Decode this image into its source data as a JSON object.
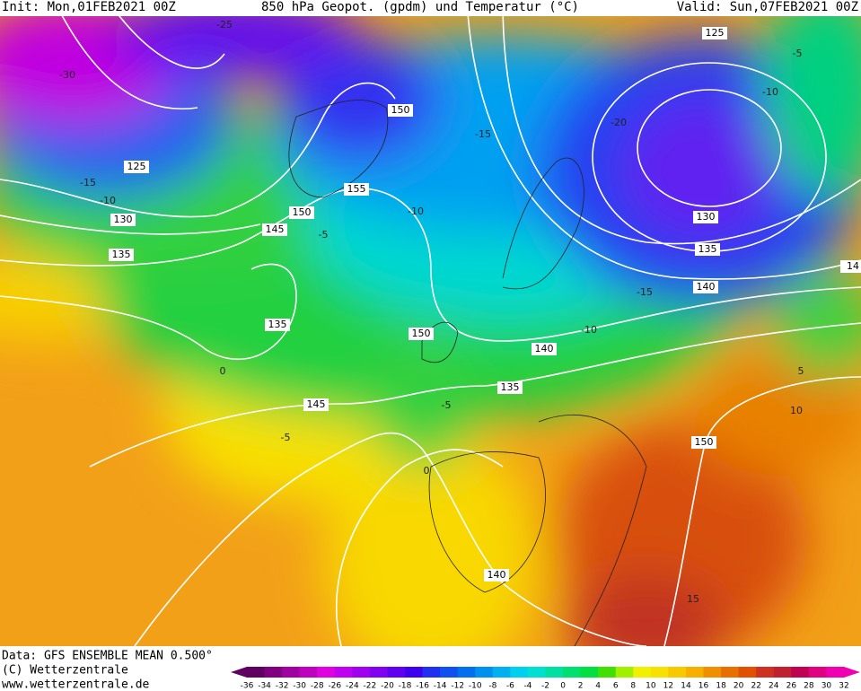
{
  "header": {
    "init": "Init: Mon,01FEB2021 00Z",
    "title": "850 hPa Geopot. (gpdm) und Temperatur (°C)",
    "valid": "Valid: Sun,07FEB2021 00Z"
  },
  "footer": {
    "source": "Data: GFS ENSEMBLE MEAN 0.500°",
    "copyright": "(C) Wetterzentrale",
    "url": "www.wetterzentrale.de"
  },
  "map": {
    "geopotential_labels": [
      125,
      130,
      135,
      150,
      155,
      150,
      145,
      135,
      145,
      150,
      140,
      135,
      140,
      150,
      125,
      130,
      135,
      140,
      14
    ],
    "temperature_labels": [
      -30,
      -25,
      -15,
      -10,
      -5,
      -10,
      -15,
      -20,
      -10,
      -5,
      -15,
      -10,
      -5,
      0,
      0,
      -5,
      5,
      10,
      15
    ]
  },
  "colorbar": {
    "ticks": [
      -36,
      -34,
      -32,
      -30,
      -28,
      -26,
      -24,
      -22,
      -20,
      -18,
      -16,
      -14,
      -12,
      -10,
      -8,
      -6,
      -4,
      -2,
      0,
      2,
      4,
      6,
      8,
      10,
      12,
      14,
      16,
      18,
      20,
      22,
      24,
      26,
      28,
      30,
      32
    ],
    "colors": [
      "#600060",
      "#800080",
      "#a000a0",
      "#c000c0",
      "#e000e0",
      "#c000f0",
      "#a000f0",
      "#8000f0",
      "#6000f0",
      "#4000f0",
      "#2030f0",
      "#1050f0",
      "#0070f0",
      "#0090f0",
      "#00b0f0",
      "#00d0f0",
      "#00e0d0",
      "#00e0a0",
      "#00e070",
      "#00e040",
      "#40e000",
      "#a0f000",
      "#f0f000",
      "#f8e000",
      "#f8c800",
      "#f8b000",
      "#f09000",
      "#e87000",
      "#e05000",
      "#d03020",
      "#c02030",
      "#c00050",
      "#e00080",
      "#f000b0"
    ]
  }
}
